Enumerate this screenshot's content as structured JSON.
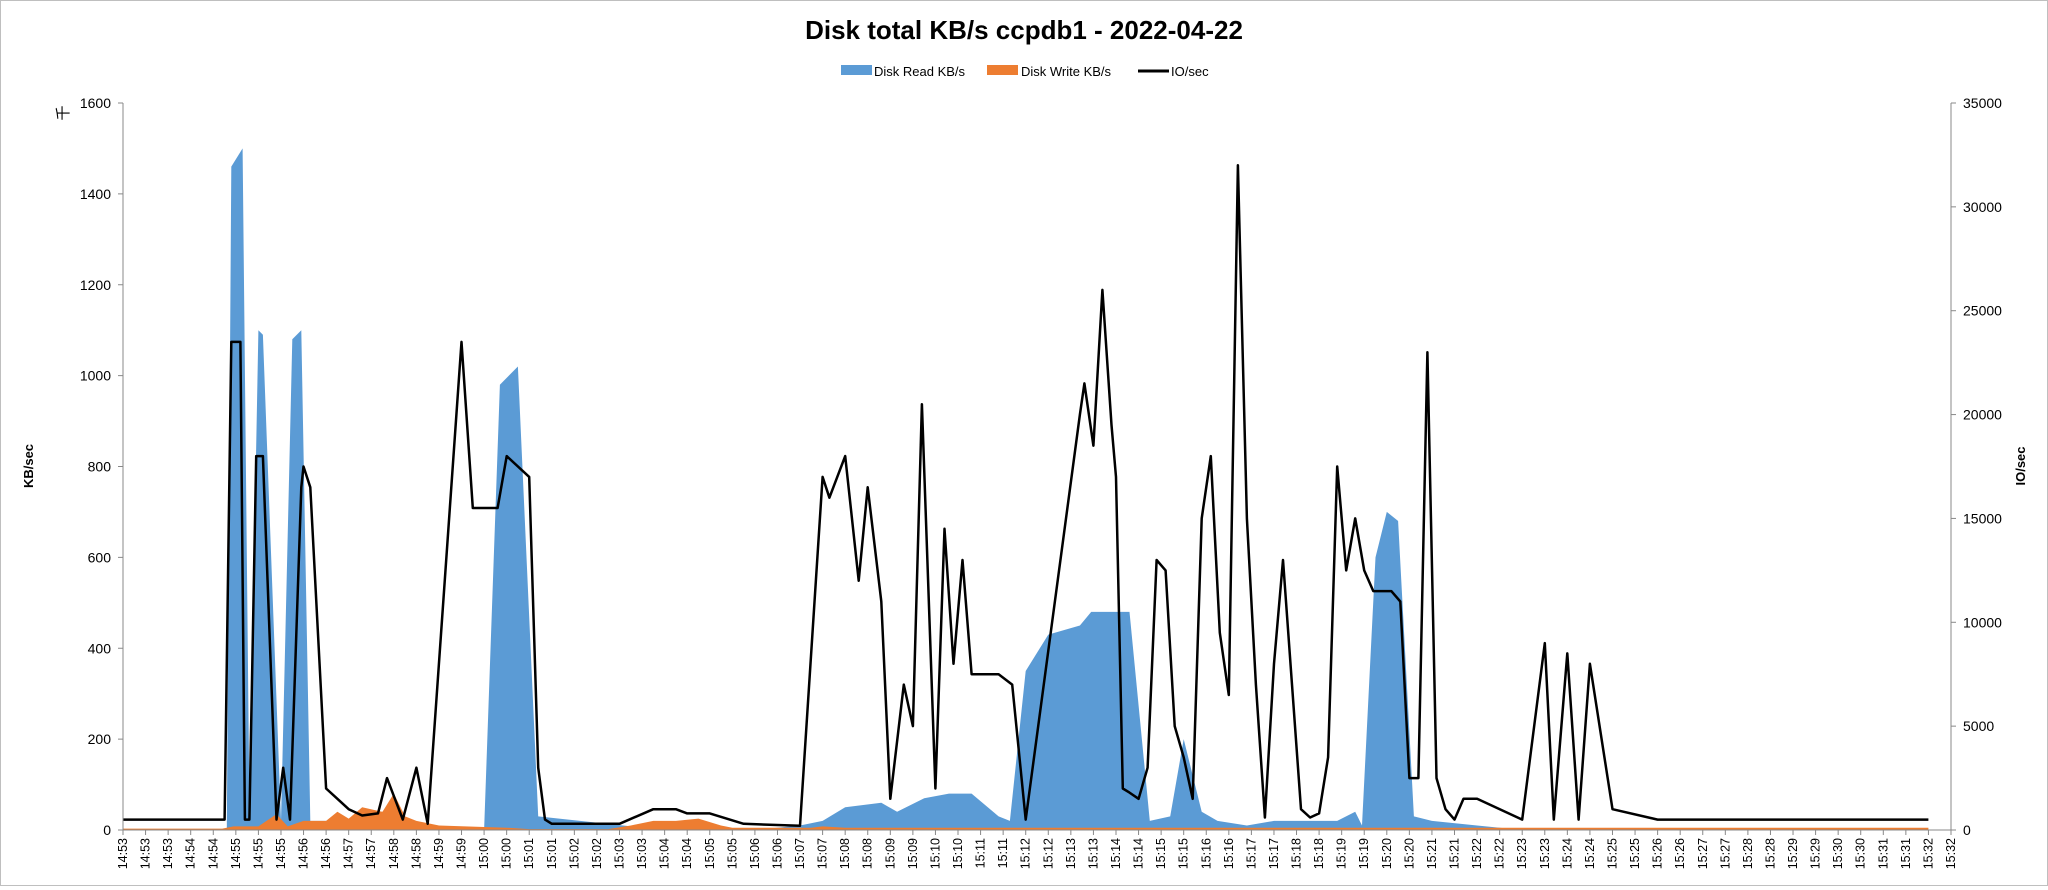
{
  "chart_data": {
    "type": "area",
    "title": "Disk total KB/s ccpdb1 - 2022-04-22",
    "ylabel": "KB/sec",
    "ylabel_unit": "千",
    "y2label": "IO/sec",
    "ylim": [
      0,
      1600
    ],
    "y2lim": [
      0,
      35000
    ],
    "yticks": [
      "0",
      "200",
      "400",
      "600",
      "800",
      "1000",
      "1200",
      "1400",
      "1600"
    ],
    "y2ticks": [
      "0",
      "5000",
      "10000",
      "15000",
      "20000",
      "25000",
      "30000",
      "35000"
    ],
    "grid": false,
    "legend_position": "top-center",
    "x_labels": [
      "14:53",
      "14:53",
      "14:53",
      "14:54",
      "14:54",
      "14:55",
      "14:55",
      "14:55",
      "14:56",
      "14:56",
      "14:57",
      "14:57",
      "14:58",
      "14:58",
      "14:59",
      "14:59",
      "15:00",
      "15:00",
      "15:01",
      "15:01",
      "15:02",
      "15:02",
      "15:03",
      "15:03",
      "15:04",
      "15:04",
      "15:05",
      "15:05",
      "15:06",
      "15:06",
      "15:07",
      "15:07",
      "15:08",
      "15:08",
      "15:09",
      "15:09",
      "15:10",
      "15:10",
      "15:11",
      "15:11",
      "15:12",
      "15:12",
      "15:13",
      "15:13",
      "15:14",
      "15:14",
      "15:15",
      "15:15",
      "15:16",
      "15:16",
      "15:17",
      "15:17",
      "15:18",
      "15:18",
      "15:19",
      "15:19",
      "15:20",
      "15:20",
      "15:21",
      "15:21",
      "15:22",
      "15:22",
      "15:23",
      "15:23",
      "15:24",
      "15:24",
      "15:25",
      "15:25",
      "15:26",
      "15:26",
      "15:27",
      "15:27",
      "15:28",
      "15:28",
      "15:29",
      "15:29",
      "15:30",
      "15:30",
      "15:31",
      "15:31",
      "15:32",
      "15:32"
    ],
    "series": [
      {
        "name": "Disk Read KB/s",
        "type": "area",
        "axis": "left",
        "color": "#5b9bd5",
        "x": [
          0.0,
          4.6,
          4.8,
          5.3,
          5.6,
          6.0,
          6.2,
          7.0,
          7.5,
          7.9,
          8.3,
          9.5,
          10.5,
          11.5,
          12.4,
          12.7,
          14.0,
          16.0,
          16.7,
          17.5,
          18.4,
          24.0,
          26.5,
          28.0,
          30.0,
          31.0,
          32.0,
          33.6,
          34.3,
          35.5,
          36.6,
          37.6,
          38.8,
          39.3,
          40.0,
          41.0,
          42.4,
          42.9,
          44.6,
          45.5,
          46.4,
          47.0,
          47.8,
          48.5,
          49.8,
          51.0,
          52.7,
          53.8,
          54.6,
          54.9,
          55.5,
          56.0,
          56.5,
          57.2,
          58.0,
          60.0,
          62.0,
          66.0,
          70.0,
          75.0,
          80.0
        ],
        "y": [
          0,
          0,
          1460,
          1500,
          60,
          1100,
          1090,
          20,
          1080,
          1100,
          20,
          20,
          10,
          0,
          0,
          0,
          0,
          0,
          980,
          1020,
          30,
          0,
          5,
          0,
          10,
          20,
          50,
          60,
          40,
          70,
          80,
          80,
          30,
          20,
          350,
          430,
          450,
          480,
          480,
          20,
          30,
          200,
          40,
          20,
          10,
          20,
          20,
          20,
          40,
          10,
          600,
          700,
          680,
          30,
          20,
          10,
          0,
          0,
          0,
          0,
          0
        ]
      },
      {
        "name": "Disk Write KB/s",
        "type": "area",
        "axis": "left",
        "color": "#ed7d31",
        "x": [
          0.0,
          4.4,
          4.9,
          5.6,
          6.0,
          6.8,
          7.3,
          8.0,
          9.0,
          9.5,
          10.0,
          10.6,
          11.5,
          12.0,
          12.5,
          13.0,
          14.0,
          17.0,
          18.0,
          19.0,
          20.0,
          20.5,
          21.0,
          21.5,
          22.5,
          23.5,
          24.5,
          25.5,
          26.5,
          27.0,
          28.0,
          29.0,
          30.5,
          31.0,
          32.0,
          32.5,
          33.0,
          34.0,
          35.0,
          36.0,
          36.5,
          37.0,
          37.5,
          38.0,
          39.0,
          40.0,
          41.0,
          42.0,
          42.5,
          43.0,
          44.0,
          45.0,
          45.5,
          46.0,
          46.5,
          47.0,
          47.5,
          48.0,
          48.5,
          49.0,
          50.0,
          50.5,
          51.0,
          51.4,
          51.7,
          52.0,
          53.0,
          54.0,
          55.0,
          56.0,
          57.0,
          58.0,
          59.0,
          60.0,
          62.0,
          63.0,
          63.5,
          64.0,
          66.0,
          70.0,
          75.0,
          80.0
        ],
        "y": [
          3,
          3,
          8,
          8,
          8,
          35,
          8,
          20,
          20,
          40,
          25,
          50,
          40,
          80,
          30,
          20,
          10,
          5,
          2,
          2,
          2,
          2,
          2,
          2,
          10,
          20,
          20,
          25,
          10,
          5,
          5,
          5,
          5,
          8,
          5,
          5,
          5,
          5,
          5,
          5,
          5,
          5,
          5,
          5,
          5,
          5,
          5,
          5,
          5,
          5,
          5,
          5,
          5,
          5,
          5,
          5,
          5,
          5,
          5,
          5,
          5,
          5,
          5,
          5,
          5,
          5,
          5,
          5,
          5,
          5,
          5,
          5,
          5,
          5,
          5,
          5,
          5,
          5,
          5,
          5,
          5,
          5
        ]
      },
      {
        "name": "IO/sec",
        "type": "line",
        "axis": "right",
        "color": "#000000",
        "x": [
          0.0,
          4.5,
          4.8,
          5.2,
          5.4,
          5.6,
          5.9,
          6.2,
          6.8,
          7.1,
          7.4,
          7.9,
          8.0,
          8.3,
          9.0,
          9.5,
          10.0,
          10.6,
          11.3,
          11.7,
          12.4,
          13.0,
          13.5,
          15.0,
          15.5,
          16.6,
          17.0,
          18.0,
          18.4,
          18.7,
          19.0,
          22.0,
          23.5,
          24.5,
          25.0,
          26.0,
          27.5,
          30.0,
          31.0,
          31.3,
          32.0,
          32.6,
          33.0,
          33.6,
          34.0,
          34.6,
          35.0,
          35.4,
          36.0,
          36.4,
          36.8,
          37.2,
          37.6,
          38.0,
          38.4,
          38.8,
          39.4,
          40.0,
          42.4,
          42.6,
          43.0,
          43.4,
          43.8,
          44.0,
          44.3,
          44.6,
          45.0,
          45.4,
          45.8,
          46.2,
          46.6,
          47.0,
          47.4,
          47.8,
          48.2,
          48.6,
          49.0,
          49.4,
          49.8,
          50.2,
          50.6,
          51.0,
          51.4,
          51.8,
          52.2,
          52.6,
          53.0,
          53.4,
          53.8,
          54.2,
          54.6,
          55.0,
          55.4,
          55.8,
          56.2,
          56.6,
          57.0,
          57.4,
          57.8,
          58.2,
          58.6,
          59.0,
          59.4,
          59.8,
          60.0,
          62.0,
          63.0,
          63.4,
          64.0,
          64.5,
          65.0,
          66.0,
          68.0,
          70.0,
          75.0,
          80.0
        ],
        "y": [
          500,
          500,
          23500,
          23500,
          500,
          500,
          18000,
          18000,
          500,
          3000,
          500,
          16500,
          17500,
          16500,
          2000,
          1500,
          1000,
          700,
          800,
          2500,
          500,
          3000,
          300,
          23500,
          15500,
          15500,
          18000,
          17000,
          3000,
          500,
          300,
          300,
          1000,
          1000,
          800,
          800,
          300,
          200,
          17000,
          16000,
          18000,
          12000,
          16500,
          11000,
          1500,
          7000,
          5000,
          20500,
          2000,
          14500,
          8000,
          13000,
          7500,
          7500,
          7500,
          7500,
          7000,
          500,
          20000,
          21500,
          18500,
          26000,
          19500,
          17000,
          2000,
          1800,
          1500,
          3000,
          13000,
          12500,
          5000,
          3500,
          1500,
          15000,
          18000,
          9500,
          6500,
          32000,
          15000,
          7000,
          600,
          8000,
          13000,
          7000,
          1000,
          600,
          800,
          3500,
          17500,
          12500,
          15000,
          12500,
          11500,
          11500,
          11500,
          11000,
          2500,
          2500,
          23000,
          2500,
          1000,
          500,
          1500,
          1500,
          1500,
          500,
          9000,
          500,
          8500,
          500,
          8000,
          1000,
          500,
          500,
          500,
          500
        ]
      }
    ]
  }
}
